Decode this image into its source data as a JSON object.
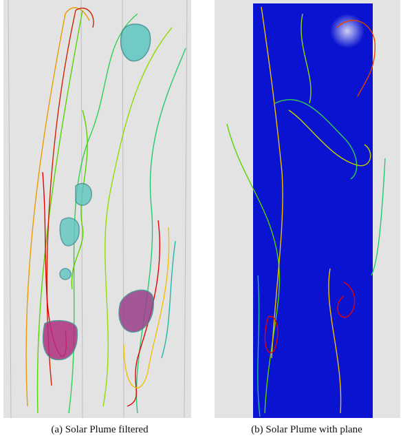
{
  "figure": {
    "panels": [
      {
        "caption": "(a) Solar Plume filtered"
      },
      {
        "caption": "(b) Solar Plume with plane"
      }
    ]
  }
}
